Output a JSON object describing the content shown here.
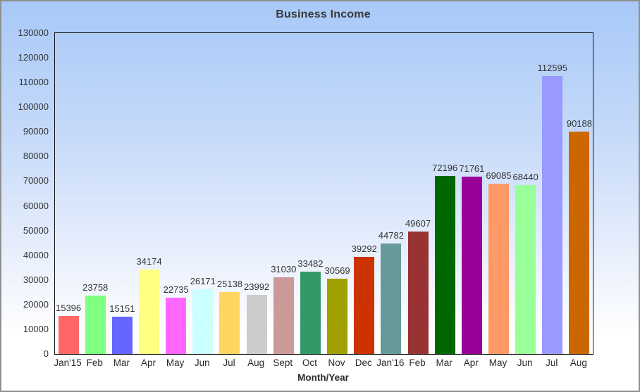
{
  "window": {
    "title": "Business Income"
  },
  "chart_data": {
    "type": "bar",
    "title": "Business Income",
    "xlabel": "Month/Year",
    "ylabel": "",
    "ylim": [
      0,
      130000
    ],
    "ytick_step": 10000,
    "yticks": [
      0,
      10000,
      20000,
      30000,
      40000,
      50000,
      60000,
      70000,
      80000,
      90000,
      100000,
      110000,
      120000,
      130000
    ],
    "categories": [
      "Jan'15",
      "Feb",
      "Mar",
      "Apr",
      "May",
      "Jun",
      "Jul",
      "Aug",
      "Sept",
      "Oct",
      "Nov",
      "Dec",
      "Jan'16",
      "Feb",
      "Mar",
      "Apr",
      "May",
      "Jun",
      "Jul",
      "Aug"
    ],
    "values": [
      15396,
      23758,
      15151,
      34174,
      22735,
      26171,
      25138,
      23992,
      31030,
      33482,
      30569,
      39292,
      44782,
      49607,
      72196,
      71761,
      69085,
      68440,
      112595,
      90188
    ],
    "bar_colors": [
      "#FF6666",
      "#80FF80",
      "#6666FF",
      "#FFFF80",
      "#FF66FF",
      "#CCFFFF",
      "#FFD561",
      "#CCCCCC",
      "#CC9999",
      "#339966",
      "#A0A000",
      "#CC3300",
      "#669999",
      "#993333",
      "#006600",
      "#990099",
      "#FF9966",
      "#99FF99",
      "#9999FF",
      "#CC6600"
    ],
    "value_labels_shown": true,
    "grid": "off",
    "legend": "none"
  },
  "colors": {
    "background_top": "#A8C9F8",
    "background_bottom": "#FFFFFF",
    "frame_border": "#8F8F8F",
    "plot_border": "#141414",
    "label_text": "#333333"
  }
}
